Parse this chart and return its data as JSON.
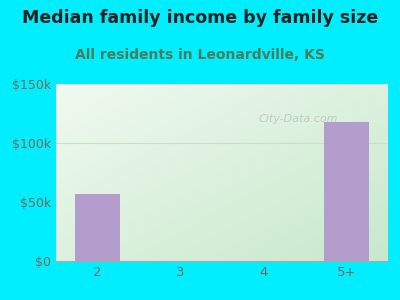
{
  "title": "Median family income by family size",
  "subtitle": "All residents in Leonardville, KS",
  "categories": [
    "2",
    "3",
    "4",
    "5+"
  ],
  "values": [
    57000,
    0,
    0,
    118000
  ],
  "bar_color": "#b39dcc",
  "ylim": [
    0,
    150000
  ],
  "yticks": [
    0,
    50000,
    100000,
    150000
  ],
  "ytick_labels": [
    "$0",
    "$50k",
    "$100k",
    "$150k"
  ],
  "bg_outer": "#00eeff",
  "title_color": "#222222",
  "subtitle_color": "#4a7c59",
  "tick_color": "#7a6a5a",
  "watermark": "City-Data.com",
  "title_fontsize": 12.5,
  "subtitle_fontsize": 10,
  "grad_top_left": "#d0edd8",
  "grad_bottom_right": "#f5fff5",
  "grid_color": "#c8dfc8",
  "watermark_color": "#aaaaaa",
  "watermark_alpha": 0.55
}
